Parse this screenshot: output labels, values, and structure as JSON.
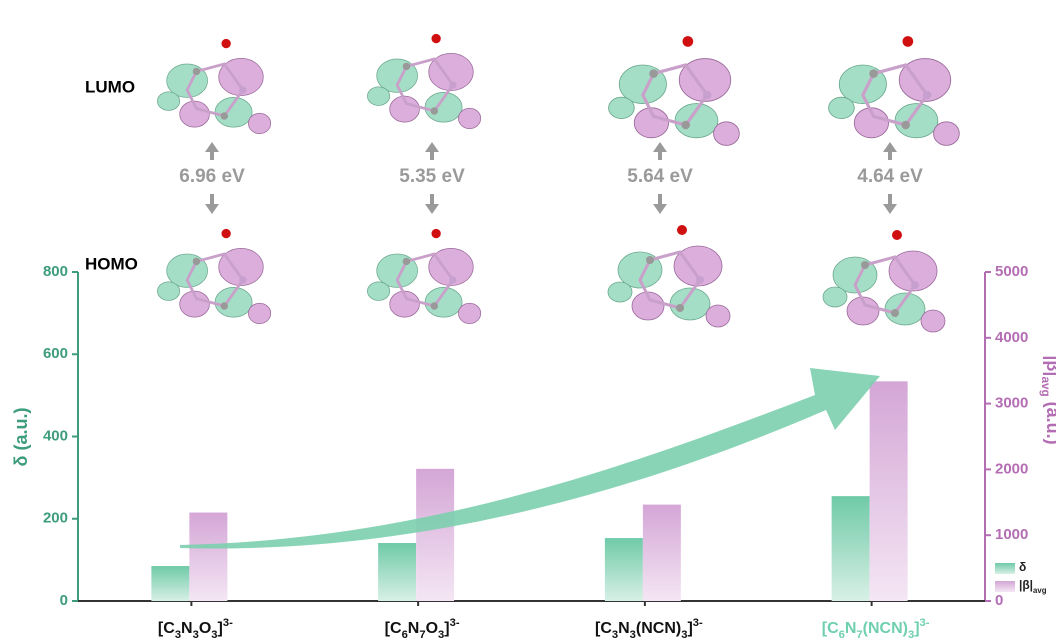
{
  "chart_data": {
    "type": "bar",
    "categories": [
      "[C3N3O3]3-",
      "[C6N7O3]3-",
      "[C3N3(NCN)3]3-",
      "[C6N7(NCN)3]3-"
    ],
    "series": [
      {
        "name": "δ",
        "color": "#7ccfae",
        "values": [
          85,
          141,
          153,
          255
        ]
      },
      {
        "name": "|β|avg",
        "color": "#d9b0d9",
        "axis": "y2",
        "values": [
          1344,
          2009,
          1465,
          3338
        ]
      }
    ],
    "ylabel": "δ (a.u.)",
    "y2label": "|β|avg (a.u.)",
    "ylim": [
      0,
      800
    ],
    "yticks": [
      0,
      200,
      400,
      600,
      800
    ],
    "y2lim": [
      0,
      5000
    ],
    "y2ticks": [
      0,
      1000,
      2000,
      3000,
      4000,
      5000
    ],
    "legend": "bottom-right",
    "orbital_labels": [
      "LUMO",
      "HOMO"
    ],
    "annotations": [
      "6.96 eV",
      "5.35 eV",
      "5.64 eV",
      "4.64 eV"
    ]
  }
}
